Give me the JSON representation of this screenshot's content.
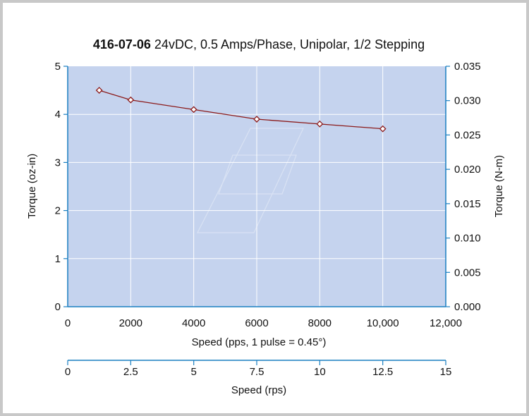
{
  "chart_data": {
    "type": "line",
    "title_bold": "416-07-06",
    "title_rest": " 24vDC, 0.5 Amps/Phase, Unipolar, 1/2 Stepping",
    "xlabel": "Speed (pps, 1 pulse = 0.45°)",
    "ylabel_left": "Torque (oz-in)",
    "ylabel_right": "Torque (N-m)",
    "xlabel_secondary": "Speed (rps)",
    "xlim": [
      0,
      12000
    ],
    "ylim": [
      0,
      5
    ],
    "ylim_right": [
      0,
      0.035
    ],
    "xlim_secondary": [
      0,
      15
    ],
    "x_ticks": [
      "0",
      "2000",
      "4000",
      "6000",
      "8000",
      "10,000",
      "12,000"
    ],
    "y_ticks_left": [
      "0",
      "1",
      "2",
      "3",
      "4",
      "5"
    ],
    "y_ticks_right": [
      "0.000",
      "0.005",
      "0.010",
      "0.015",
      "0.020",
      "0.025",
      "0.030",
      "0.035"
    ],
    "x_ticks_secondary": [
      "0",
      "2.5",
      "5",
      "7.5",
      "10",
      "12.5",
      "15"
    ],
    "grid": true,
    "series": [
      {
        "x": [
          1000,
          2000,
          4000,
          6000,
          8000,
          10000
        ],
        "y": [
          4.5,
          4.3,
          4.1,
          3.9,
          3.8,
          3.7
        ]
      }
    ],
    "colors": {
      "plot_bg": "#c5d3ee",
      "grid": "#ffffff",
      "axis": "#1a7fc1",
      "line": "#8b1a1a",
      "marker_fill": "#ffffff"
    }
  }
}
